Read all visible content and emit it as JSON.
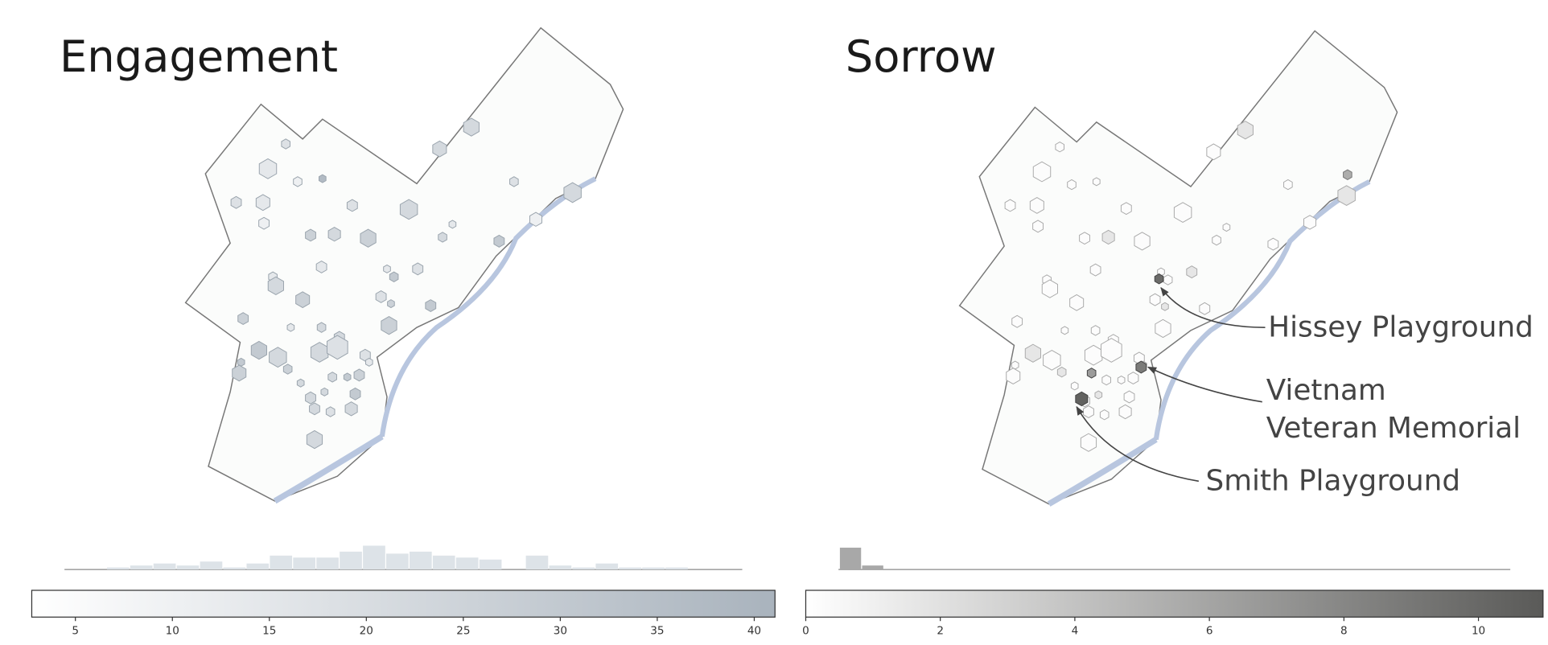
{
  "chart_data": [
    {
      "type": "histogram",
      "title": "Engagement",
      "bins": [
        6.6,
        7.8,
        9.0,
        10.2,
        11.4,
        12.6,
        13.8,
        15.0,
        16.2,
        17.4,
        18.6,
        19.8,
        21.0,
        22.2,
        23.4,
        24.6,
        25.8,
        27.0,
        28.2,
        29.4,
        30.6,
        31.8,
        33.0,
        34.2,
        35.4,
        36.6,
        37.8
      ],
      "counts": [
        1,
        2,
        3,
        2,
        4,
        1,
        3,
        7,
        6,
        6,
        9,
        12,
        8,
        9,
        7,
        6,
        5,
        0,
        7,
        2,
        1,
        3,
        1,
        1,
        1,
        0
      ],
      "xlim": [
        2.75,
        41.07
      ],
      "xticks": [
        5,
        10,
        15,
        20,
        25,
        30,
        35,
        40
      ],
      "colors": [
        "#ffffff",
        "#a9b3bd"
      ]
    },
    {
      "type": "histogram",
      "title": "Sorrow",
      "bins": [
        0.5,
        0.83,
        1.16
      ],
      "counts": [
        11,
        2
      ],
      "xlim": [
        0,
        10.96
      ],
      "xticks": [
        0,
        2,
        4,
        6,
        8,
        10
      ],
      "colors": [
        "#ffffff",
        "#5a5a58"
      ],
      "annotations": [
        [
          "Hissey Playground"
        ],
        [
          "Vietnam",
          "Veteran Memorial"
        ],
        [
          "Smith Playground"
        ]
      ]
    }
  ]
}
